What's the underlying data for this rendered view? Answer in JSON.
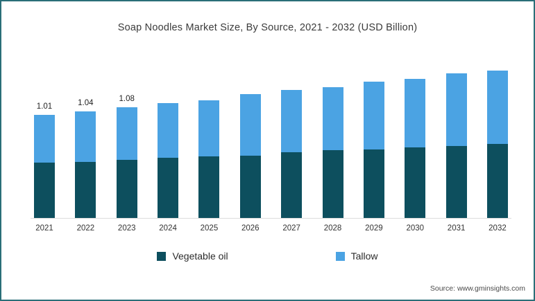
{
  "title": "Soap Noodles Market Size, By Source, 2021 - 2032 (USD Billion)",
  "source": "Source: www.gminsights.com",
  "colors": {
    "vegetable_oil": "#0d4f5e",
    "tallow": "#4ba3e3",
    "frame_border": "#2a6e78"
  },
  "chart_data": {
    "type": "bar",
    "stacked": true,
    "title": "Soap Noodles Market Size, By Source, 2021 - 2032 (USD Billion)",
    "xlabel": "",
    "ylabel": "USD Billion",
    "ylim": [
      0,
      1.6
    ],
    "grid": false,
    "legend_position": "bottom",
    "categories": [
      "2021",
      "2022",
      "2023",
      "2024",
      "2025",
      "2026",
      "2027",
      "2028",
      "2029",
      "2030",
      "2031",
      "2032"
    ],
    "series": [
      {
        "name": "Vegetable oil",
        "color": "#0d4f5e",
        "values": [
          0.54,
          0.55,
          0.57,
          0.59,
          0.6,
          0.61,
          0.64,
          0.66,
          0.67,
          0.69,
          0.7,
          0.72
        ]
      },
      {
        "name": "Tallow",
        "color": "#4ba3e3",
        "values": [
          0.47,
          0.49,
          0.51,
          0.53,
          0.55,
          0.6,
          0.61,
          0.62,
          0.66,
          0.67,
          0.71,
          0.72
        ]
      }
    ],
    "totals": [
      1.01,
      1.04,
      1.08,
      1.12,
      1.15,
      1.21,
      1.25,
      1.28,
      1.33,
      1.36,
      1.41,
      1.44
    ],
    "total_labels": [
      "1.01",
      "1.04",
      "1.08",
      "",
      "",
      "",
      "",
      "",
      "",
      "",
      "",
      ""
    ]
  }
}
